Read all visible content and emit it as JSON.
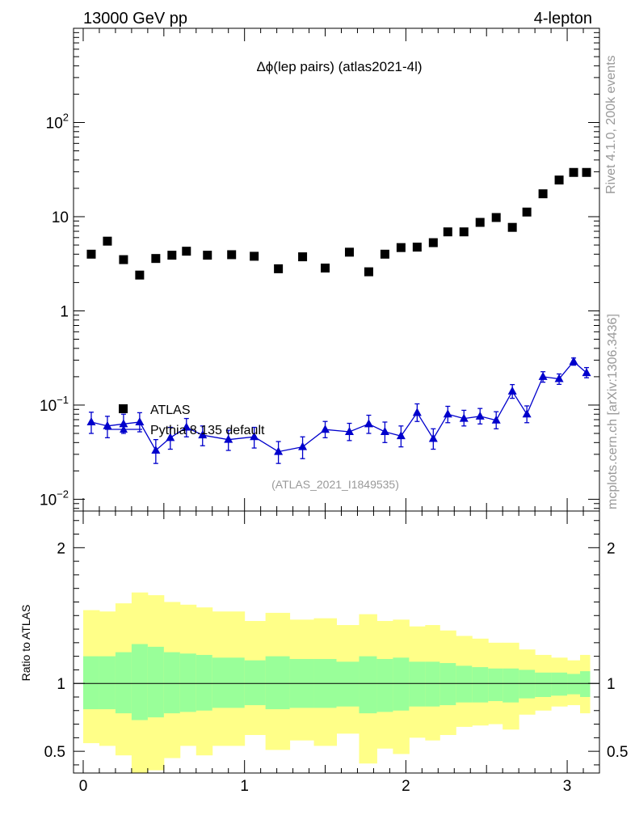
{
  "header": {
    "left_title": "13000 GeV pp",
    "right_title": "4-lepton"
  },
  "side_labels": {
    "top": "Rivet 4.1.0,  200k events",
    "bottom": "mcplots.cern.ch [arXiv:1306.3436]"
  },
  "colors": {
    "data": "#000000",
    "mc": "#0000cc",
    "band_inner": "#99ff99",
    "band_outer": "#ffff88",
    "watermark": "#999999"
  },
  "chart_data": [
    {
      "type": "scatter",
      "title": "Δϕ(lep pairs) (atlas2021-4l)",
      "watermark": "(ATLAS_2021_I1849535)",
      "xlabel": "",
      "ylabel": "",
      "yscale": "log",
      "xlim": [
        -0.06,
        3.2
      ],
      "ylim": [
        0.0075,
        1000
      ],
      "xticks": [
        0,
        1,
        2,
        3
      ],
      "yticks": [
        {
          "value": 0.01,
          "base": "10",
          "exp": "−2"
        },
        {
          "value": 0.1,
          "base": "10",
          "exp": "−1"
        },
        {
          "value": 1,
          "base": "1",
          "exp": ""
        },
        {
          "value": 10,
          "base": "10",
          "exp": ""
        },
        {
          "value": 100,
          "base": "10",
          "exp": "2"
        }
      ],
      "legend": [
        {
          "label": "ATLAS",
          "marker": "square"
        },
        {
          "label": "Pythia 8.135 default",
          "marker": "triangle"
        }
      ],
      "legend_position": "bottom-left",
      "series": [
        {
          "name": "ATLAS",
          "marker": "square",
          "x": [
            0.05,
            0.15,
            0.25,
            0.35,
            0.45,
            0.55,
            0.64,
            0.77,
            0.92,
            1.06,
            1.21,
            1.36,
            1.5,
            1.65,
            1.77,
            1.87,
            1.97,
            2.07,
            2.17,
            2.26,
            2.36,
            2.46,
            2.56,
            2.66,
            2.75,
            2.85,
            2.95,
            3.04,
            3.12
          ],
          "values": [
            4.0,
            5.5,
            3.5,
            2.4,
            3.6,
            3.9,
            4.3,
            3.9,
            3.95,
            3.8,
            2.8,
            3.75,
            2.85,
            4.2,
            2.6,
            4.0,
            4.7,
            4.75,
            5.3,
            6.9,
            6.9,
            8.7,
            9.8,
            7.7,
            11.2,
            17.5,
            24.5,
            29.5,
            29.5
          ]
        },
        {
          "name": "Pythia 8.135 default",
          "marker": "triangle",
          "x": [
            0.05,
            0.15,
            0.25,
            0.35,
            0.45,
            0.54,
            0.64,
            0.74,
            0.9,
            1.06,
            1.21,
            1.36,
            1.5,
            1.65,
            1.77,
            1.87,
            1.97,
            2.07,
            2.17,
            2.26,
            2.36,
            2.46,
            2.56,
            2.66,
            2.75,
            2.85,
            2.95,
            3.04,
            3.12
          ],
          "values": [
            0.066,
            0.06,
            0.063,
            0.066,
            0.033,
            0.045,
            0.058,
            0.048,
            0.043,
            0.046,
            0.032,
            0.036,
            0.055,
            0.052,
            0.063,
            0.052,
            0.047,
            0.083,
            0.044,
            0.08,
            0.072,
            0.076,
            0.069,
            0.14,
            0.08,
            0.2,
            0.19,
            0.29,
            0.22
          ],
          "err_lo": [
            0.05,
            0.045,
            0.05,
            0.052,
            0.024,
            0.034,
            0.046,
            0.037,
            0.033,
            0.035,
            0.024,
            0.027,
            0.045,
            0.042,
            0.05,
            0.04,
            0.036,
            0.067,
            0.034,
            0.065,
            0.06,
            0.063,
            0.056,
            0.118,
            0.065,
            0.175,
            0.166,
            0.265,
            0.195
          ],
          "err_hi": [
            0.084,
            0.076,
            0.08,
            0.083,
            0.043,
            0.058,
            0.072,
            0.06,
            0.054,
            0.058,
            0.041,
            0.046,
            0.067,
            0.064,
            0.078,
            0.066,
            0.06,
            0.103,
            0.056,
            0.097,
            0.088,
            0.092,
            0.085,
            0.165,
            0.098,
            0.226,
            0.214,
            0.316,
            0.25
          ]
        }
      ]
    },
    {
      "type": "area",
      "ylabel": "Ratio to ATLAS",
      "xlabel": "",
      "xlim": [
        -0.06,
        3.2
      ],
      "ylim": [
        0.34,
        2.27
      ],
      "xticks": [
        0,
        1,
        2,
        3
      ],
      "yticks": [
        0.5,
        1,
        2
      ],
      "reference_line": 1,
      "bin_edges": [
        0,
        0.1,
        0.2,
        0.3,
        0.4,
        0.5,
        0.6,
        0.7,
        0.8,
        1.0,
        1.13,
        1.28,
        1.43,
        1.57,
        1.71,
        1.82,
        1.92,
        2.02,
        2.12,
        2.21,
        2.31,
        2.41,
        2.51,
        2.6,
        2.7,
        2.8,
        2.9,
        3.0,
        3.08,
        3.14
      ],
      "band_outer_lo": [
        0.56,
        0.54,
        0.47,
        0.32,
        0.36,
        0.45,
        0.54,
        0.47,
        0.54,
        0.62,
        0.51,
        0.58,
        0.54,
        0.63,
        0.41,
        0.52,
        0.48,
        0.6,
        0.58,
        0.62,
        0.68,
        0.69,
        0.7,
        0.66,
        0.77,
        0.8,
        0.83,
        0.84,
        0.78
      ],
      "band_outer_hi": [
        1.54,
        1.53,
        1.59,
        1.67,
        1.65,
        1.6,
        1.58,
        1.56,
        1.53,
        1.46,
        1.52,
        1.47,
        1.48,
        1.43,
        1.51,
        1.46,
        1.47,
        1.42,
        1.43,
        1.39,
        1.35,
        1.33,
        1.3,
        1.3,
        1.25,
        1.21,
        1.19,
        1.17,
        1.21
      ],
      "band_inner_lo": [
        0.81,
        0.81,
        0.78,
        0.73,
        0.75,
        0.78,
        0.79,
        0.8,
        0.82,
        0.84,
        0.81,
        0.82,
        0.82,
        0.83,
        0.78,
        0.79,
        0.8,
        0.83,
        0.83,
        0.84,
        0.86,
        0.86,
        0.87,
        0.86,
        0.89,
        0.9,
        0.91,
        0.92,
        0.9
      ],
      "band_inner_hi": [
        1.2,
        1.2,
        1.23,
        1.29,
        1.27,
        1.23,
        1.22,
        1.21,
        1.19,
        1.17,
        1.2,
        1.18,
        1.18,
        1.16,
        1.2,
        1.18,
        1.19,
        1.16,
        1.16,
        1.15,
        1.13,
        1.12,
        1.11,
        1.11,
        1.1,
        1.08,
        1.08,
        1.07,
        1.09
      ]
    }
  ]
}
